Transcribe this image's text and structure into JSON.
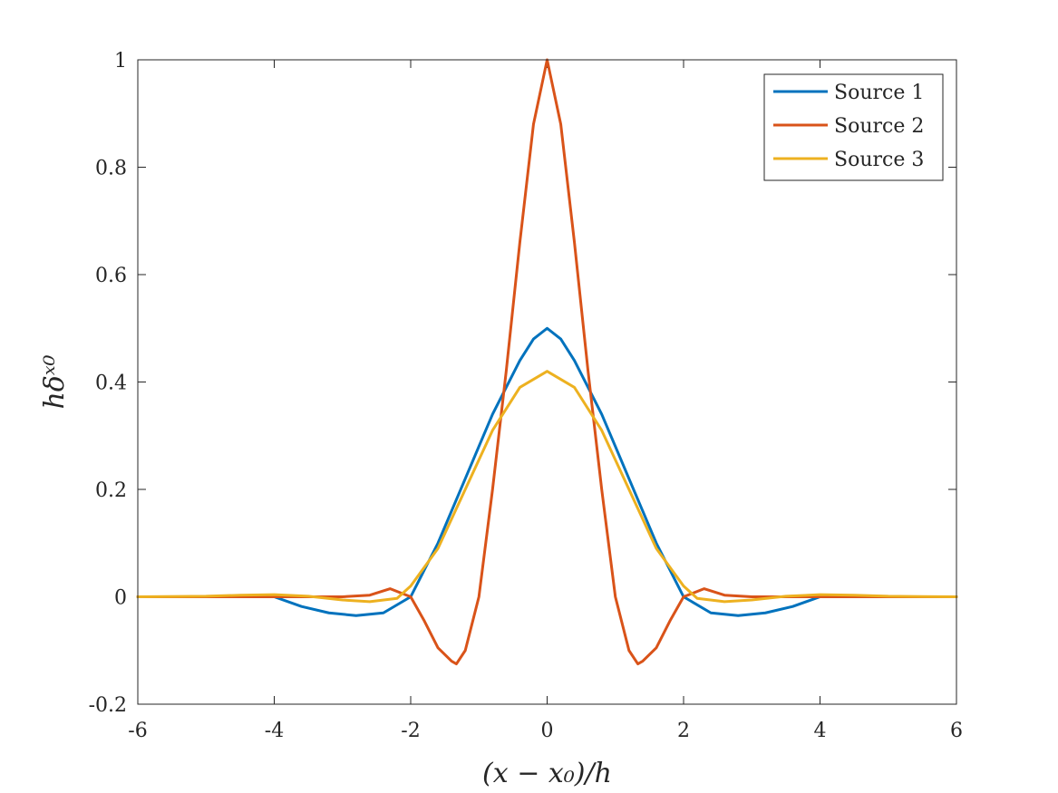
{
  "chart_data": {
    "type": "line",
    "xlabel": "(x − x₀)/h",
    "ylabel": "hδˣ⁰",
    "xlim": [
      -6,
      6
    ],
    "ylim": [
      -0.2,
      1
    ],
    "xticks": [
      -6,
      -4,
      -2,
      0,
      2,
      4,
      6
    ],
    "yticks": [
      -0.2,
      0,
      0.2,
      0.4,
      0.6,
      0.8,
      1
    ],
    "xtick_labels": [
      "-6",
      "-4",
      "-2",
      "0",
      "2",
      "4",
      "6"
    ],
    "ytick_labels": [
      "-0.2",
      "0",
      "0.2",
      "0.4",
      "0.6",
      "0.8",
      "1"
    ],
    "grid": false,
    "legend_position": "top-right",
    "series": [
      {
        "name": "Source 1",
        "color": "#0072BD",
        "x": [
          -6,
          -4,
          -3.6,
          -3.2,
          -2.8,
          -2.4,
          -2,
          -1.8,
          -1.6,
          -1.4,
          -1.2,
          -1,
          -0.8,
          -0.6,
          -0.4,
          -0.2,
          0,
          0.2,
          0.4,
          0.6,
          0.8,
          1,
          1.2,
          1.4,
          1.6,
          1.8,
          2,
          2.4,
          2.8,
          3.2,
          3.6,
          4,
          6
        ],
        "y": [
          0,
          0,
          -0.018,
          -0.03,
          -0.035,
          -0.03,
          0,
          0.05,
          0.1,
          0.16,
          0.22,
          0.28,
          0.34,
          0.39,
          0.44,
          0.48,
          0.5,
          0.48,
          0.44,
          0.39,
          0.34,
          0.28,
          0.22,
          0.16,
          0.1,
          0.05,
          0,
          -0.03,
          -0.035,
          -0.03,
          -0.018,
          0,
          0
        ]
      },
      {
        "name": "Source 2",
        "color": "#D95319",
        "x": [
          -6,
          -4,
          -3,
          -2.6,
          -2.3,
          -2,
          -1.8,
          -1.6,
          -1.4,
          -1.33,
          -1.2,
          -1,
          -0.8,
          -0.6,
          -0.4,
          -0.2,
          0,
          0.2,
          0.4,
          0.6,
          0.8,
          1,
          1.2,
          1.33,
          1.4,
          1.6,
          1.8,
          2,
          2.3,
          2.6,
          3,
          4,
          6
        ],
        "y": [
          0,
          0,
          0,
          0.003,
          0.015,
          0,
          -0.045,
          -0.095,
          -0.12,
          -0.125,
          -0.1,
          0,
          0.2,
          0.42,
          0.66,
          0.88,
          1,
          0.88,
          0.66,
          0.42,
          0.2,
          0,
          -0.1,
          -0.125,
          -0.12,
          -0.095,
          -0.045,
          0,
          0.015,
          0.003,
          0,
          0,
          0
        ]
      },
      {
        "name": "Source 3",
        "color": "#EDB120",
        "x": [
          -6,
          -5,
          -4.5,
          -4,
          -3.5,
          -3,
          -2.6,
          -2.2,
          -2,
          -1.6,
          -1.2,
          -0.8,
          -0.4,
          0,
          0.4,
          0.8,
          1.2,
          1.6,
          2,
          2.2,
          2.6,
          3,
          3.5,
          4,
          4.5,
          5,
          6
        ],
        "y": [
          0,
          0.001,
          0.003,
          0.004,
          0.001,
          -0.006,
          -0.009,
          -0.003,
          0.02,
          0.09,
          0.2,
          0.31,
          0.39,
          0.42,
          0.39,
          0.31,
          0.2,
          0.09,
          0.02,
          -0.003,
          -0.009,
          -0.006,
          0.001,
          0.004,
          0.003,
          0.001,
          0
        ]
      }
    ]
  }
}
